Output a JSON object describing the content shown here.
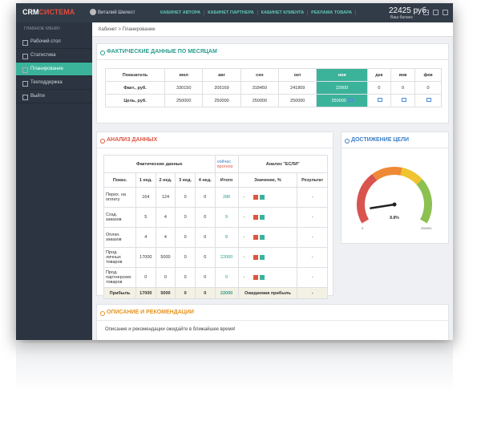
{
  "header": {
    "logo": [
      "CRM",
      "СИСТЕМА"
    ],
    "user": "Виталий Шелест",
    "nav": [
      "КАБИНЕТ АВТОРА",
      "КАБИНЕТ ПАРТНЕРА",
      "КАБИНЕТ КЛИЕНТА",
      "РЕКЛАМА ТОВАРА"
    ],
    "balance": "22425 руб.",
    "balance_label": "Ваш баланс"
  },
  "sidebar": {
    "title": "ГЛАВНОЕ МЕНЮ",
    "items": [
      "Рабочий стол",
      "Статистика",
      "Планирование",
      "Техподдержка",
      "Выйти"
    ]
  },
  "breadcrumb": [
    "Кабинет",
    "Планирование"
  ],
  "monthly": {
    "title": "ФАКТИЧЕСКИЕ ДАННЫЕ ПО МЕСЯЦАМ",
    "columns": [
      "Показатель",
      "июл",
      "авг",
      "сен",
      "окт",
      "ноя",
      "дек",
      "янв",
      "фев"
    ],
    "rows": [
      {
        "label": "Факт., руб.",
        "values": [
          330150,
          205169,
          318450,
          241809,
          22000,
          0,
          0,
          0
        ]
      },
      {
        "label": "Цель, руб.",
        "values": [
          250000,
          250000,
          250000,
          250000,
          250000
        ]
      }
    ]
  },
  "analysis": {
    "title": "АНАЛИЗ ДАННЫХ",
    "group_header": "Фактические данные",
    "radio": [
      "сейчас",
      "прогноз"
    ],
    "if_header": "Анализ \"ЕСЛИ\"",
    "columns": [
      "Показ.",
      "1 нед.",
      "2 нед.",
      "3 нед.",
      "4 нед.",
      "Итого",
      "Значение, %",
      "Результат"
    ],
    "rows": [
      {
        "label": "Перех. на оплату",
        "values": [
          164,
          124,
          0,
          0
        ],
        "total": 288,
        "percent": "-",
        "result": "-"
      },
      {
        "label": "Созд. заказов",
        "values": [
          5,
          4,
          0,
          0
        ],
        "total": 9,
        "percent": "-",
        "result": "-"
      },
      {
        "label": "Оплач. заказов",
        "values": [
          4,
          4,
          0,
          0
        ],
        "total": 8,
        "percent": "-",
        "result": "-"
      },
      {
        "label": "Прод. личных товаров",
        "values": [
          17000,
          5000,
          0,
          0
        ],
        "total": 22000,
        "percent": "-",
        "result": "-"
      },
      {
        "label": "Прод. партнерских товаров",
        "values": [
          0,
          0,
          0,
          0
        ],
        "total": 0,
        "percent": "-",
        "result": "-"
      }
    ],
    "footer": {
      "label": "Прибыль",
      "values": [
        17000,
        5000,
        0,
        0
      ],
      "total": 22000,
      "expected": "Ожидаемая прибыль",
      "result": "-"
    }
  },
  "goal": {
    "title": "ДОСТИЖЕНИЕ ЦЕЛИ",
    "value": 22000,
    "lim": [
      0,
      250000
    ],
    "ticks": [
      0,
      250000
    ],
    "label": "8.8%"
  },
  "description": {
    "title": "ОПИСАНИЕ И РЕКОМЕНДАЦИИ",
    "text": "Описание и рекомендации ожидайте в ближайшее время!"
  }
}
